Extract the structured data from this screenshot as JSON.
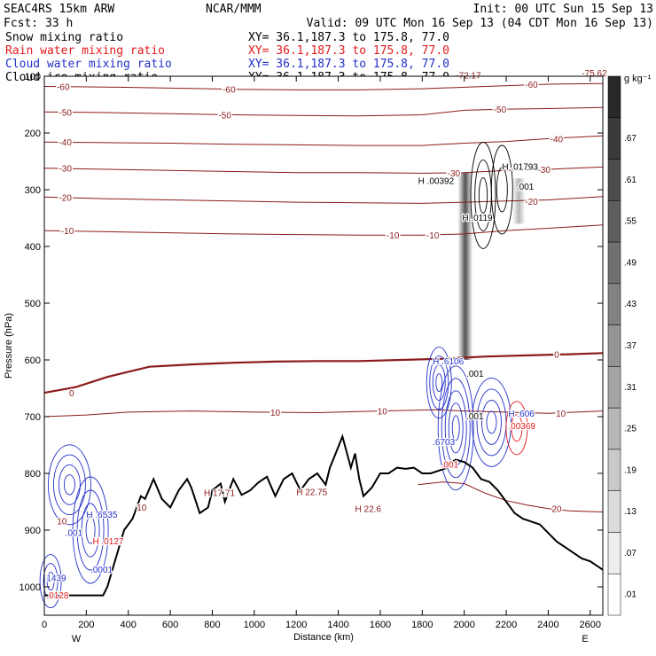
{
  "header": {
    "model": "SEAC4RS 15km ARW",
    "forecast": "Fcst:   33 h",
    "org": "NCAR/MMM",
    "init": "Init: 00 UTC Sun 15 Sep 13",
    "valid": "Valid: 09 UTC Mon 16 Sep 13 (04 CDT Mon 16 Sep 13)"
  },
  "fields": [
    {
      "name": "Snow mixing ratio",
      "xy": "XY=  36.1,187.3 to 175.8, 77.0",
      "color": "#000000"
    },
    {
      "name": "Rain water mixing ratio",
      "xy": "XY=  36.1,187.3 to 175.8, 77.0",
      "color": "#e41a1c"
    },
    {
      "name": "Cloud water mixing ratio",
      "xy": "XY=  36.1,187.3 to 175.8, 77.0",
      "color": "#2230c8"
    },
    {
      "name": "Cloud ice mixing ratio",
      "xy": "XY=  36.1,187.3 to 175.8, 77.0",
      "color": "#000000"
    }
  ],
  "chart_data": {
    "type": "cross-section",
    "xlabel": "Distance (km)",
    "ylabel": "Pressure (hPa)",
    "xlim": [
      0,
      2660
    ],
    "ylim": [
      100,
      1050
    ],
    "x_ticks": [
      0,
      200,
      400,
      600,
      800,
      1000,
      1200,
      1400,
      1600,
      1800,
      2000,
      2200,
      2400,
      2600
    ],
    "y_ticks": [
      100,
      200,
      300,
      400,
      500,
      600,
      700,
      800,
      900,
      1000
    ],
    "end_labels": {
      "left": "W",
      "right": "E"
    },
    "colorbar": {
      "unit": "g kg⁻¹",
      "ticks": [
        "",
        ".67",
        ".61",
        ".55",
        ".49",
        ".43",
        ".37",
        ".31",
        ".25",
        ".19",
        ".13",
        ".07",
        ".01"
      ]
    },
    "temperature_contours": [
      {
        "label": "-60",
        "points": [
          [
            0,
            118
          ],
          [
            300,
            119
          ],
          [
            600,
            121
          ],
          [
            900,
            123
          ],
          [
            1200,
            124
          ],
          [
            1500,
            124
          ],
          [
            1800,
            122
          ],
          [
            2100,
            118
          ],
          [
            2400,
            114
          ],
          [
            2660,
            113
          ]
        ],
        "labels_at": [
          [
            90,
            118
          ],
          [
            880,
            123
          ],
          [
            2320,
            114
          ]
        ]
      },
      {
        "label": "-50",
        "points": [
          [
            0,
            163
          ],
          [
            300,
            164
          ],
          [
            600,
            166
          ],
          [
            900,
            168
          ],
          [
            1200,
            169
          ],
          [
            1500,
            170
          ],
          [
            1800,
            168
          ],
          [
            2000,
            160
          ],
          [
            2200,
            158
          ],
          [
            2400,
            157
          ],
          [
            2660,
            155
          ]
        ],
        "labels_at": [
          [
            100,
            163
          ],
          [
            860,
            168
          ],
          [
            2170,
            158
          ]
        ]
      },
      {
        "label": "-40",
        "points": [
          [
            0,
            216
          ],
          [
            300,
            217
          ],
          [
            600,
            218
          ],
          [
            900,
            220
          ],
          [
            1200,
            221
          ],
          [
            1500,
            222
          ],
          [
            1800,
            222
          ],
          [
            2000,
            218
          ],
          [
            2200,
            215
          ],
          [
            2400,
            210
          ],
          [
            2660,
            205
          ]
        ],
        "labels_at": [
          [
            100,
            216
          ],
          [
            2440,
            210
          ]
        ]
      },
      {
        "label": "-30",
        "points": [
          [
            0,
            262
          ],
          [
            300,
            264
          ],
          [
            600,
            266
          ],
          [
            900,
            268
          ],
          [
            1200,
            270
          ],
          [
            1500,
            270
          ],
          [
            1800,
            271
          ],
          [
            2000,
            270
          ],
          [
            2200,
            266
          ],
          [
            2400,
            264
          ],
          [
            2660,
            260
          ]
        ],
        "labels_at": [
          [
            100,
            262
          ],
          [
            1950,
            270
          ],
          [
            2380,
            264
          ]
        ]
      },
      {
        "label": "-20",
        "points": [
          [
            0,
            313
          ],
          [
            300,
            316
          ],
          [
            600,
            318
          ],
          [
            900,
            320
          ],
          [
            1200,
            322
          ],
          [
            1500,
            323
          ],
          [
            1800,
            324
          ],
          [
            2000,
            322
          ],
          [
            2200,
            320
          ],
          [
            2400,
            318
          ],
          [
            2660,
            312
          ]
        ],
        "labels_at": [
          [
            100,
            313
          ],
          [
            2320,
            320
          ]
        ]
      },
      {
        "label": "-10",
        "points": [
          [
            0,
            372
          ],
          [
            300,
            374
          ],
          [
            600,
            376
          ],
          [
            900,
            378
          ],
          [
            1200,
            379
          ],
          [
            1500,
            380
          ],
          [
            1800,
            380
          ],
          [
            2000,
            378
          ],
          [
            2200,
            372
          ],
          [
            2400,
            368
          ],
          [
            2660,
            362
          ]
        ],
        "labels_at": [
          [
            110,
            372
          ],
          [
            1660,
            380
          ],
          [
            1850,
            380
          ]
        ]
      },
      {
        "label": "0",
        "points": [
          [
            0,
            658
          ],
          [
            150,
            648
          ],
          [
            300,
            630
          ],
          [
            500,
            612
          ],
          [
            700,
            608
          ],
          [
            900,
            605
          ],
          [
            1100,
            603
          ],
          [
            1300,
            602
          ],
          [
            1500,
            602
          ],
          [
            1700,
            600
          ],
          [
            1900,
            598
          ],
          [
            2100,
            594
          ],
          [
            2300,
            592
          ],
          [
            2500,
            590
          ],
          [
            2660,
            588
          ]
        ],
        "labels_at": [
          [
            130,
            658
          ],
          [
            2440,
            590
          ]
        ]
      },
      {
        "label": "10",
        "points": [
          [
            0,
            700
          ],
          [
            200,
            697
          ],
          [
            400,
            692
          ],
          [
            700,
            690
          ],
          [
            1000,
            692
          ],
          [
            1300,
            693
          ],
          [
            1600,
            690
          ],
          [
            1850,
            688
          ],
          [
            2000,
            690
          ],
          [
            2200,
            692
          ],
          [
            2400,
            694
          ],
          [
            2660,
            690
          ]
        ],
        "labels_at": [
          [
            1100,
            692
          ],
          [
            1610,
            690
          ],
          [
            2460,
            694
          ]
        ]
      },
      {
        "label": "20",
        "points": [
          [
            1780,
            820
          ],
          [
            1900,
            815
          ],
          [
            2000,
            818
          ],
          [
            2100,
            835
          ],
          [
            2200,
            848
          ],
          [
            2300,
            856
          ],
          [
            2400,
            862
          ],
          [
            2500,
            866
          ],
          [
            2660,
            868
          ]
        ],
        "labels_at": [
          [
            2440,
            862
          ]
        ]
      }
    ],
    "other_contour_labels": [
      "-72.17",
      "-75.62"
    ],
    "min_max_labels": [
      {
        "mark": "H",
        "value": ".00392",
        "x": 1780,
        "p": 290,
        "color": "#000000"
      },
      {
        "mark": "H",
        "value": ".01793",
        "x": 2180,
        "p": 265,
        "color": "#000000"
      },
      {
        "mark": "H",
        "value": ".0119",
        "x": 1990,
        "p": 355,
        "color": "#000000"
      },
      {
        "mark": "",
        "value": ".001",
        "x": 2250,
        "p": 300,
        "color": "#000000"
      },
      {
        "mark": "H",
        "value": ".6106",
        "x": 1850,
        "p": 608,
        "color": "#2230c8"
      },
      {
        "mark": "",
        "value": ".001",
        "x": 2010,
        "p": 630,
        "color": "#000000"
      },
      {
        "mark": "",
        "value": ".001",
        "x": 2010,
        "p": 705,
        "color": "#000000"
      },
      {
        "mark": "H",
        "value": ".606",
        "x": 2210,
        "p": 700,
        "color": "#2230c8"
      },
      {
        "mark": "",
        "value": ".00369",
        "x": 2210,
        "p": 722,
        "color": "#e41a1c"
      },
      {
        "mark": "",
        "value": ".6703",
        "x": 1850,
        "p": 750,
        "color": "#2230c8"
      },
      {
        "mark": "",
        "value": ".001",
        "x": 1890,
        "p": 790,
        "color": "#e41a1c"
      },
      {
        "mark": "H",
        "value": "17.71",
        "x": 760,
        "p": 840,
        "color": "#8b1a1a"
      },
      {
        "mark": "H",
        "value": "22.75",
        "x": 1200,
        "p": 838,
        "color": "#8b1a1a"
      },
      {
        "mark": "H",
        "value": "22.6",
        "x": 1480,
        "p": 868,
        "color": "#8b1a1a"
      },
      {
        "mark": "",
        "value": "10",
        "x": 440,
        "p": 866,
        "color": "#8b1a1a"
      },
      {
        "mark": "",
        "value": "10",
        "x": 60,
        "p": 890,
        "color": "#8b1a1a"
      },
      {
        "mark": "H",
        "value": ".6535",
        "x": 200,
        "p": 878,
        "color": "#2230c8"
      },
      {
        "mark": "",
        "value": ".001",
        "x": 100,
        "p": 910,
        "color": "#2230c8"
      },
      {
        "mark": "H",
        "value": ".0127",
        "x": 230,
        "p": 925,
        "color": "#e41a1c"
      },
      {
        "mark": "",
        "value": ".0001",
        "x": 220,
        "p": 975,
        "color": "#2230c8"
      },
      {
        "mark": "",
        "value": "1439",
        "x": 10,
        "p": 990,
        "color": "#2230c8"
      },
      {
        "mark": "",
        "value": ".0128",
        "x": 10,
        "p": 1020,
        "color": "#e41a1c"
      }
    ],
    "terrain": {
      "x": [
        0,
        280,
        300,
        380,
        420,
        460,
        480,
        520,
        560,
        600,
        640,
        680,
        700,
        740,
        780,
        800,
        840,
        860,
        900,
        940,
        980,
        1020,
        1060,
        1100,
        1140,
        1180,
        1220,
        1260,
        1300,
        1340,
        1360,
        1380,
        1420,
        1460,
        1480,
        1500,
        1520,
        1560,
        1600,
        1640,
        1680,
        1720,
        1760,
        1800,
        1840,
        1880,
        1920,
        1940,
        1960,
        2000,
        2040,
        2080,
        2120,
        2160,
        2200,
        2240,
        2280,
        2320,
        2360,
        2400,
        2440,
        2480,
        2520,
        2560,
        2600,
        2640,
        2660
      ],
      "p": [
        1015,
        1015,
        1000,
        900,
        880,
        840,
        845,
        810,
        845,
        860,
        830,
        810,
        825,
        870,
        860,
        830,
        818,
        850,
        810,
        838,
        830,
        816,
        806,
        840,
        810,
        800,
        830,
        810,
        800,
        820,
        790,
        772,
        735,
        790,
        765,
        810,
        840,
        825,
        800,
        800,
        790,
        792,
        790,
        800,
        800,
        795,
        790,
        780,
        776,
        780,
        790,
        810,
        815,
        830,
        850,
        870,
        880,
        885,
        890,
        905,
        920,
        930,
        940,
        950,
        955,
        965,
        970
      ]
    }
  }
}
